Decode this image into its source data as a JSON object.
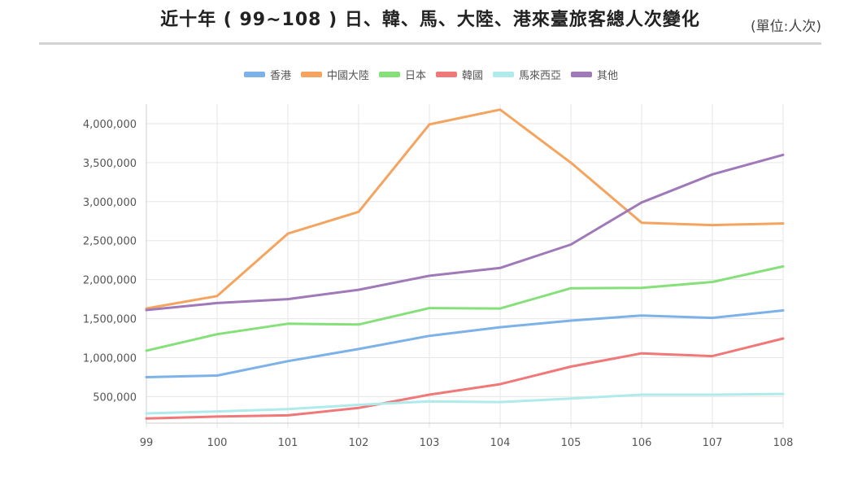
{
  "header": {
    "title": "近十年 ( 99~108 ) 日、韓、馬、大陸、港來臺旅客總人次變化",
    "unit": "(單位:人次)"
  },
  "chart_data": {
    "type": "line",
    "title": "近十年 ( 99~108 ) 日、韓、馬、大陸、港來臺旅客總人次變化",
    "xlabel": "",
    "ylabel": "",
    "x": [
      "99",
      "100",
      "101",
      "102",
      "103",
      "104",
      "105",
      "106",
      "107",
      "108"
    ],
    "ylim": [
      160000,
      4250000
    ],
    "yticks": [
      500000,
      1000000,
      1500000,
      2000000,
      2500000,
      3000000,
      3500000,
      4000000
    ],
    "ytick_labels": [
      "500,000",
      "1,000,000",
      "1,500,000",
      "2,000,000",
      "2,500,000",
      "3,000,000",
      "3,500,000",
      "4,000,000"
    ],
    "grid": true,
    "legend": "top-center",
    "series": [
      {
        "name": "香港",
        "color": "#7cb2e8",
        "values": [
          750000,
          770000,
          955000,
          1110000,
          1280000,
          1390000,
          1475000,
          1540000,
          1510000,
          1605000
        ]
      },
      {
        "name": "中國大陸",
        "color": "#f4a45f",
        "values": [
          1630000,
          1790000,
          2590000,
          2870000,
          3990000,
          4180000,
          3500000,
          2730000,
          2700000,
          2720000
        ]
      },
      {
        "name": "日本",
        "color": "#86e07a",
        "values": [
          1090000,
          1300000,
          1435000,
          1425000,
          1635000,
          1630000,
          1890000,
          1895000,
          1970000,
          2170000
        ]
      },
      {
        "name": "韓國",
        "color": "#f07878",
        "values": [
          220000,
          245000,
          260000,
          355000,
          525000,
          660000,
          885000,
          1055000,
          1020000,
          1245000
        ]
      },
      {
        "name": "馬來西亞",
        "color": "#b0eaea",
        "values": [
          285000,
          310000,
          340000,
          395000,
          440000,
          430000,
          475000,
          525000,
          525000,
          535000
        ]
      },
      {
        "name": "其他",
        "color": "#a07ab8",
        "values": [
          1610000,
          1700000,
          1750000,
          1870000,
          2050000,
          2150000,
          2450000,
          2990000,
          3350000,
          3600000
        ]
      }
    ]
  }
}
